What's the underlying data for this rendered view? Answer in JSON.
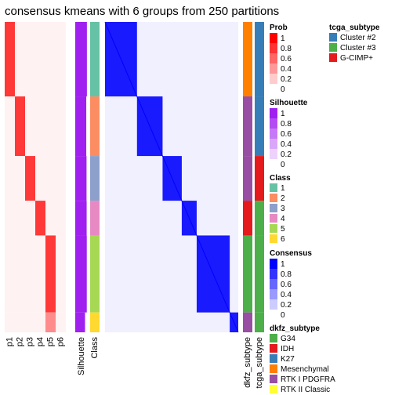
{
  "title": "consensus kmeans with 6 groups from 250 partitions",
  "columns": {
    "prob": [
      "p1",
      "p2",
      "p3",
      "p4",
      "p5",
      "p6"
    ],
    "silhouette": "Silhouette",
    "class": "Class",
    "annotations": [
      "dkfz_subtype",
      "tcga_subtype"
    ]
  },
  "colors": {
    "class": [
      "#66C2A5",
      "#FC8D62",
      "#8DA0CB",
      "#E78AC3",
      "#A6D854",
      "#FFD92F"
    ],
    "tcga": [
      "#377EB8",
      "#4DAF4A",
      "#E41A1C"
    ],
    "dkfz": [
      "#4DAF4A",
      "#E41A1C",
      "#377EB8",
      "#FF7F00",
      "#984EA3",
      "#FFFF33"
    ],
    "prob_high": "#FF0000",
    "silhouette_high": "#A020F0",
    "consensus_high": "#0000FF"
  },
  "chart_data": {
    "type": "heatmap",
    "groups": [
      {
        "class": "1",
        "rows": 60,
        "silhouette": 0.93
      },
      {
        "class": "2",
        "rows": 48,
        "silhouette": 0.88
      },
      {
        "class": "3",
        "rows": 36,
        "silhouette": 0.9
      },
      {
        "class": "4",
        "rows": 28,
        "silhouette": 0.91
      },
      {
        "class": "5",
        "rows": 62,
        "silhouette": 0.92
      },
      {
        "class": "6",
        "rows": 16,
        "silhouette": 0.78
      }
    ],
    "legends": [
      {
        "title": "Prob",
        "ticks": [
          "1",
          "0.8",
          "0.6",
          "0.4",
          "0.2",
          "0"
        ]
      },
      {
        "title": "Silhouette",
        "ticks": [
          "1",
          "0.8",
          "0.6",
          "0.4",
          "0.2",
          "0"
        ]
      },
      {
        "title": "Class",
        "labels": [
          "1",
          "2",
          "3",
          "4",
          "5",
          "6"
        ]
      },
      {
        "title": "Consensus",
        "ticks": [
          "1",
          "0.8",
          "0.6",
          "0.4",
          "0.2",
          "0"
        ]
      },
      {
        "title": "dkfz_subtype",
        "labels": [
          "G34",
          "IDH",
          "K27",
          "Mesenchymal",
          "RTK I PDGFRA",
          "RTK II Classic"
        ]
      },
      {
        "title": "tcga_subtype",
        "labels": [
          "Cluster #2",
          "Cluster #3",
          "G-CIMP+"
        ]
      }
    ]
  }
}
